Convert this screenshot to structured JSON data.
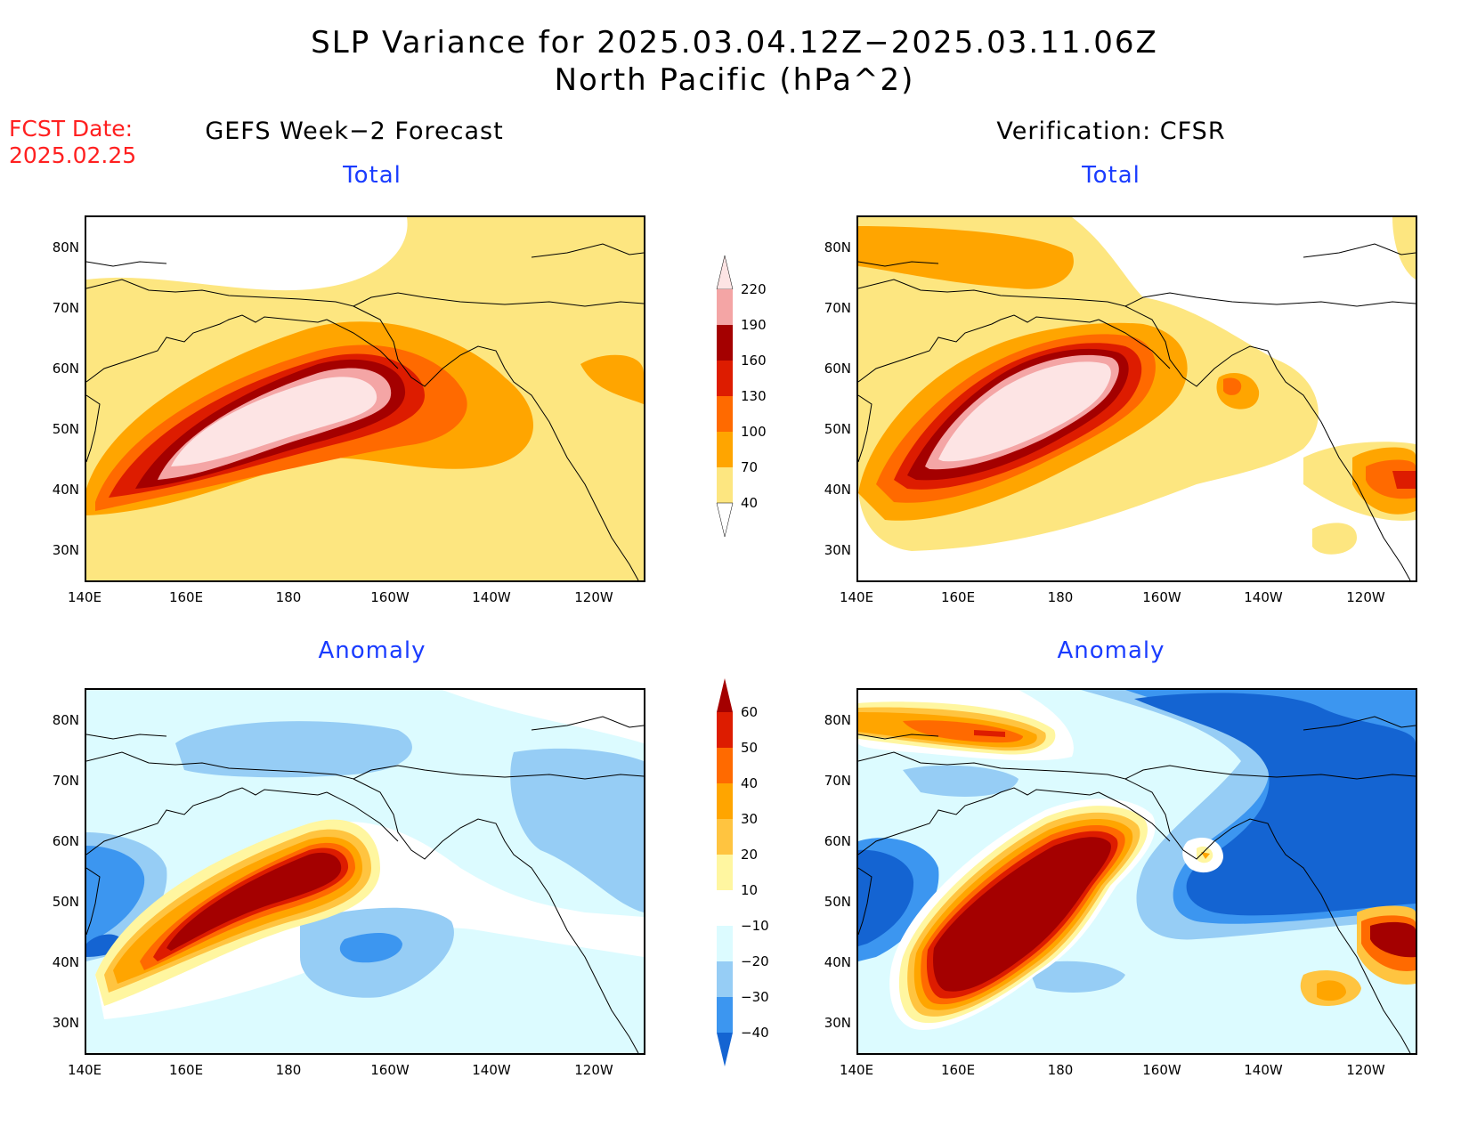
{
  "title": {
    "line1": "SLP Variance for 2025.03.04.12Z−2025.03.11.06Z",
    "line2": "North Pacific (hPa^2)"
  },
  "fcst": {
    "line1": "FCST Date:",
    "line2": "2025.02.25"
  },
  "columns": {
    "left": "GEFS Week−2 Forecast",
    "right": "Verification: CFSR"
  },
  "panels": {
    "total": "Total",
    "anomaly": "Anomaly"
  },
  "lat_ticks": [
    "80N",
    "70N",
    "60N",
    "50N",
    "40N",
    "30N"
  ],
  "lon_ticks": [
    "140E",
    "160E",
    "180",
    "160W",
    "140W",
    "120W"
  ],
  "colorbar_total": {
    "labels": [
      "220",
      "190",
      "160",
      "130",
      "100",
      "70",
      "40"
    ],
    "colors": [
      "#fde4e4",
      "#f4a5a5",
      "#a40000",
      "#dd1c00",
      "#ff6a00",
      "#ffa500",
      "#fde680",
      "#ffffff"
    ]
  },
  "colorbar_anom": {
    "labels": [
      "60",
      "50",
      "40",
      "30",
      "20",
      "10",
      "−10",
      "−20",
      "−30",
      "−40"
    ],
    "colors": [
      "#a40000",
      "#dd1c00",
      "#ff6a00",
      "#ffa500",
      "#ffc440",
      "#fff6a0",
      "#ffffff",
      "#dcfbff",
      "#96cdf5",
      "#3c96f0",
      "#1464d2"
    ]
  }
}
